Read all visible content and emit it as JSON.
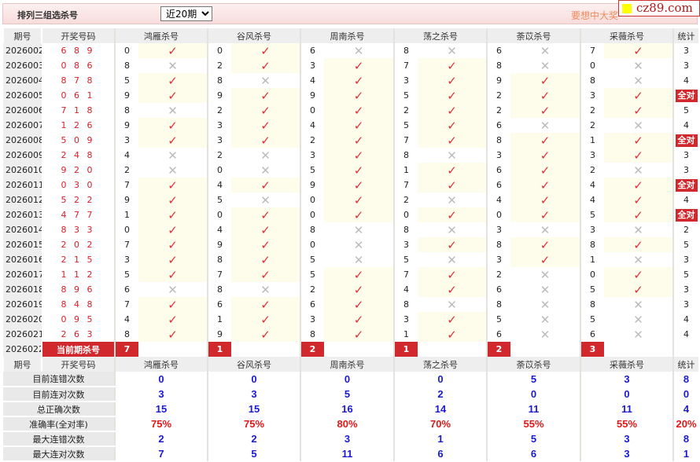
{
  "header": {
    "title": "排列三组选杀号",
    "period_select": "近20期",
    "promo": "要想中大奖",
    "watermark": "cz89.com"
  },
  "columns": {
    "period": "期号",
    "draw": "开奖号码",
    "experts": [
      "鸿雁杀号",
      "谷风杀号",
      "周南杀号",
      "荡之杀号",
      "荼苡杀号",
      "采薇杀号"
    ],
    "stat": "统计"
  },
  "all_correct_label": "全对",
  "rows": [
    {
      "period": "2026002",
      "draw": "6 8 9",
      "kills": [
        0,
        0,
        6,
        8,
        6,
        7
      ],
      "stat": "3"
    },
    {
      "period": "2026003",
      "draw": "0 8 6",
      "kills": [
        8,
        2,
        3,
        7,
        8,
        0
      ],
      "stat": "3"
    },
    {
      "period": "2026004",
      "draw": "8 7 8",
      "kills": [
        5,
        8,
        4,
        3,
        9,
        8
      ],
      "stat": "4"
    },
    {
      "period": "2026005",
      "draw": "0 6 1",
      "kills": [
        9,
        9,
        9,
        5,
        2,
        3
      ],
      "stat": "全对"
    },
    {
      "period": "2026006",
      "draw": "7 1 8",
      "kills": [
        8,
        2,
        0,
        2,
        2,
        2
      ],
      "stat": "5"
    },
    {
      "period": "2026007",
      "draw": "1 2 6",
      "kills": [
        9,
        3,
        4,
        5,
        6,
        2
      ],
      "stat": "4"
    },
    {
      "period": "2026008",
      "draw": "5 0 9",
      "kills": [
        3,
        3,
        2,
        7,
        8,
        1
      ],
      "stat": "全对"
    },
    {
      "period": "2026009",
      "draw": "2 4 8",
      "kills": [
        4,
        2,
        3,
        8,
        3,
        3
      ],
      "stat": "3"
    },
    {
      "period": "2026010",
      "draw": "9 2 0",
      "kills": [
        2,
        0,
        5,
        1,
        6,
        2
      ],
      "stat": "3"
    },
    {
      "period": "2026011",
      "draw": "0 3 0",
      "kills": [
        7,
        4,
        9,
        7,
        6,
        4
      ],
      "stat": "全对"
    },
    {
      "period": "2026012",
      "draw": "5 2 2",
      "kills": [
        9,
        5,
        0,
        2,
        4,
        4
      ],
      "stat": "4"
    },
    {
      "period": "2026013",
      "draw": "4 7 7",
      "kills": [
        1,
        0,
        0,
        0,
        0,
        5
      ],
      "stat": "全对"
    },
    {
      "period": "2026014",
      "draw": "8 3 3",
      "kills": [
        0,
        4,
        8,
        8,
        3,
        3
      ],
      "stat": "2"
    },
    {
      "period": "2026015",
      "draw": "2 0 2",
      "kills": [
        7,
        9,
        0,
        3,
        8,
        8
      ],
      "stat": "5"
    },
    {
      "period": "2026016",
      "draw": "2 1 5",
      "kills": [
        3,
        8,
        5,
        5,
        3,
        1
      ],
      "stat": "3"
    },
    {
      "period": "2026017",
      "draw": "1 1 2",
      "kills": [
        5,
        7,
        5,
        7,
        2,
        0
      ],
      "stat": "5"
    },
    {
      "period": "2026018",
      "draw": "8 9 6",
      "kills": [
        6,
        8,
        2,
        4,
        6,
        5
      ],
      "stat": "3"
    },
    {
      "period": "2026019",
      "draw": "8 4 8",
      "kills": [
        7,
        6,
        6,
        8,
        8,
        8
      ],
      "stat": "3"
    },
    {
      "period": "2026020",
      "draw": "0 9 5",
      "kills": [
        4,
        1,
        3,
        3,
        5,
        5
      ],
      "stat": "4"
    },
    {
      "period": "2026021",
      "draw": "2 6 3",
      "kills": [
        8,
        9,
        8,
        1,
        6,
        6
      ],
      "stat": "4"
    }
  ],
  "current": {
    "period": "2026022",
    "label": "当前期杀号",
    "kills": [
      "7",
      "1",
      "2",
      "1",
      "2",
      "3"
    ]
  },
  "stats": [
    {
      "label": "目前连错次数",
      "values": [
        "0",
        "0",
        "0",
        "0",
        "5",
        "3",
        "8"
      ],
      "color": "blue"
    },
    {
      "label": "目前连对次数",
      "values": [
        "3",
        "3",
        "5",
        "2",
        "0",
        "0",
        "0"
      ],
      "color": "blue"
    },
    {
      "label": "总正确次数",
      "values": [
        "15",
        "15",
        "16",
        "14",
        "11",
        "11",
        "4"
      ],
      "color": "blue"
    },
    {
      "label": "准确率(全对率)",
      "values": [
        "75%",
        "75%",
        "80%",
        "70%",
        "55%",
        "55%",
        "20%"
      ],
      "color": "red"
    },
    {
      "label": "最大连错次数",
      "values": [
        "2",
        "2",
        "3",
        "1",
        "5",
        "3",
        "8"
      ],
      "color": "blue"
    },
    {
      "label": "最大连对次数",
      "values": [
        "7",
        "5",
        "11",
        "6",
        "6",
        "3",
        "1"
      ],
      "color": "blue"
    }
  ],
  "colors": {
    "check": "#e0303a",
    "cross": "#bbbbbb",
    "badge": "#d0282c",
    "stat_value": "#1a1ad0",
    "rate": "#e01818"
  },
  "icons": {
    "correct": "check-icon",
    "wrong": "cross-icon"
  }
}
